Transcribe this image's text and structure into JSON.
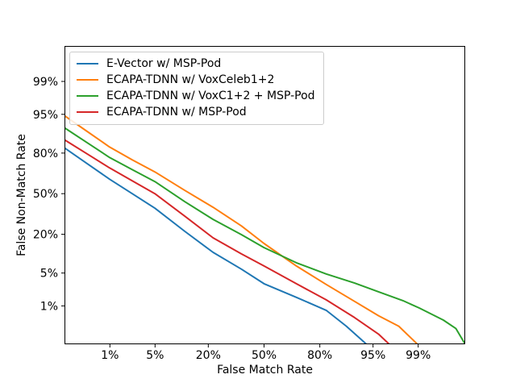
{
  "chart_data": {
    "type": "line",
    "subtype": "det-curve",
    "title": "",
    "xlabel": "False Match Rate",
    "ylabel": "False Non-Match Rate",
    "x_scale": "probit",
    "y_scale": "probit",
    "grid": false,
    "legend_position": "upper left",
    "background": "#ffffff",
    "axis_color": "#000000",
    "xlim_pct": [
      0.13,
      99.88
    ],
    "ylim_pct": [
      0.09,
      99.89
    ],
    "x_ticks_pct": [
      1,
      5,
      20,
      50,
      80,
      95,
      99
    ],
    "x_tick_labels": [
      "1%",
      "5%",
      "20%",
      "50%",
      "80%",
      "95%",
      "99%"
    ],
    "y_ticks_pct": [
      1,
      5,
      20,
      50,
      80,
      95,
      99
    ],
    "y_tick_labels": [
      "1%",
      "5%",
      "20%",
      "50%",
      "80%",
      "95%",
      "99%"
    ],
    "series": [
      {
        "name": "E-Vector w/ MSP-Pod",
        "color": "#1f77b4",
        "x": [
          0.13,
          0.39,
          0.99,
          2.33,
          4.97,
          11.6,
          22.1,
          36.6,
          50.0,
          68.7,
          82.6,
          89.3,
          93.9
        ],
        "y": [
          82.9,
          73.1,
          61.8,
          50.0,
          38.2,
          21.7,
          11.2,
          5.9,
          3.1,
          1.58,
          0.78,
          0.3,
          0.09
        ]
      },
      {
        "name": "ECAPA-TDNN w/ VoxCeleb1+2",
        "color": "#ff7f0e",
        "x": [
          0.13,
          0.39,
          0.99,
          2.33,
          4.97,
          11.6,
          22.1,
          36.6,
          50.0,
          68.7,
          82.6,
          91.4,
          95.8,
          97.9,
          98.97
        ],
        "y": [
          94.7,
          90.0,
          83.3,
          75.8,
          67.4,
          52.7,
          38.9,
          25.2,
          15.1,
          6.7,
          3.0,
          1.28,
          0.57,
          0.3,
          0.09
        ]
      },
      {
        "name": "ECAPA-TDNN w/ VoxC1+2 + MSP-Pod",
        "color": "#2ca02c",
        "x": [
          0.13,
          0.39,
          0.99,
          2.33,
          4.97,
          11.6,
          22.1,
          36.6,
          50.0,
          68.7,
          82.6,
          91.4,
          95.8,
          98.2,
          99.04,
          99.66,
          99.81,
          99.88
        ],
        "y": [
          91.4,
          85.3,
          77.3,
          69.1,
          59.9,
          43.4,
          29.7,
          19.8,
          13.2,
          7.6,
          4.8,
          3.2,
          2.1,
          1.33,
          0.89,
          0.44,
          0.26,
          0.09
        ]
      },
      {
        "name": "ECAPA-TDNN w/ MSP-Pod",
        "color": "#d62728",
        "x": [
          0.13,
          0.39,
          0.99,
          2.33,
          4.97,
          11.6,
          22.1,
          36.6,
          50.0,
          68.7,
          82.6,
          91.4,
          95.8,
          97.06
        ],
        "y": [
          86.8,
          79.3,
          70.3,
          60.5,
          50.0,
          32.0,
          18.0,
          10.6,
          6.7,
          3.1,
          1.39,
          0.51,
          0.18,
          0.09
        ]
      }
    ]
  }
}
